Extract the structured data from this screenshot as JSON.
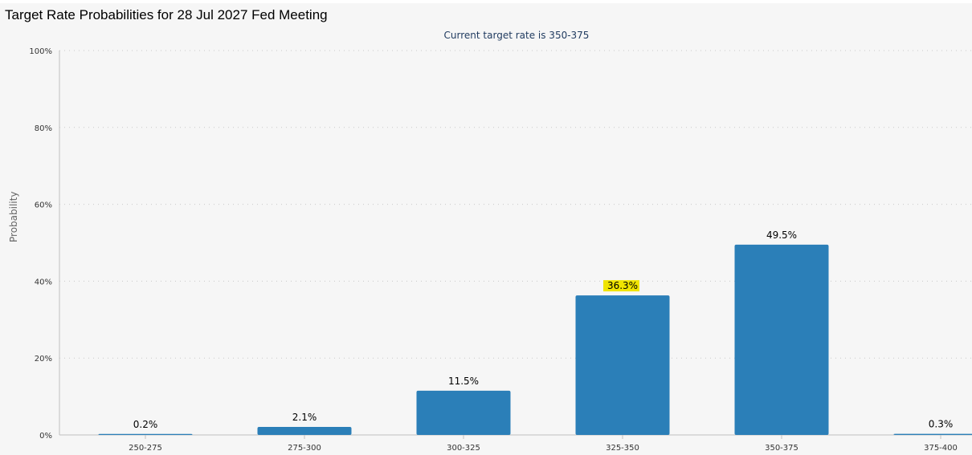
{
  "window_title": "Target Rate Probabilities for 28 Jul 2027 Fed Meeting",
  "chart_data": {
    "type": "bar",
    "title": "",
    "subtitle": "Current target rate is 350-375",
    "xlabel": "",
    "ylabel": "Probability",
    "ylim": [
      0,
      100
    ],
    "y_ticks": [
      "0%",
      "20%",
      "40%",
      "60%",
      "80%",
      "100%"
    ],
    "y_tick_values": [
      0,
      20,
      40,
      60,
      80,
      100
    ],
    "grid": "horizontal dotted",
    "categories": [
      "250-275",
      "275-300",
      "300-325",
      "325-350",
      "350-375",
      "375-400"
    ],
    "values": [
      0.2,
      2.1,
      11.5,
      36.3,
      49.5,
      0.3
    ],
    "data_labels": [
      "0.2%",
      "2.1%",
      "11.5%",
      "36.3%",
      "49.5%",
      "0.3%"
    ],
    "highlighted_label": "36.3%",
    "colors": {
      "bar": "#2b7fb8",
      "highlight": "#f0e400",
      "grid": "#c8c8c8",
      "axis": "#c0c0c0",
      "background": "#f6f6f6"
    }
  }
}
